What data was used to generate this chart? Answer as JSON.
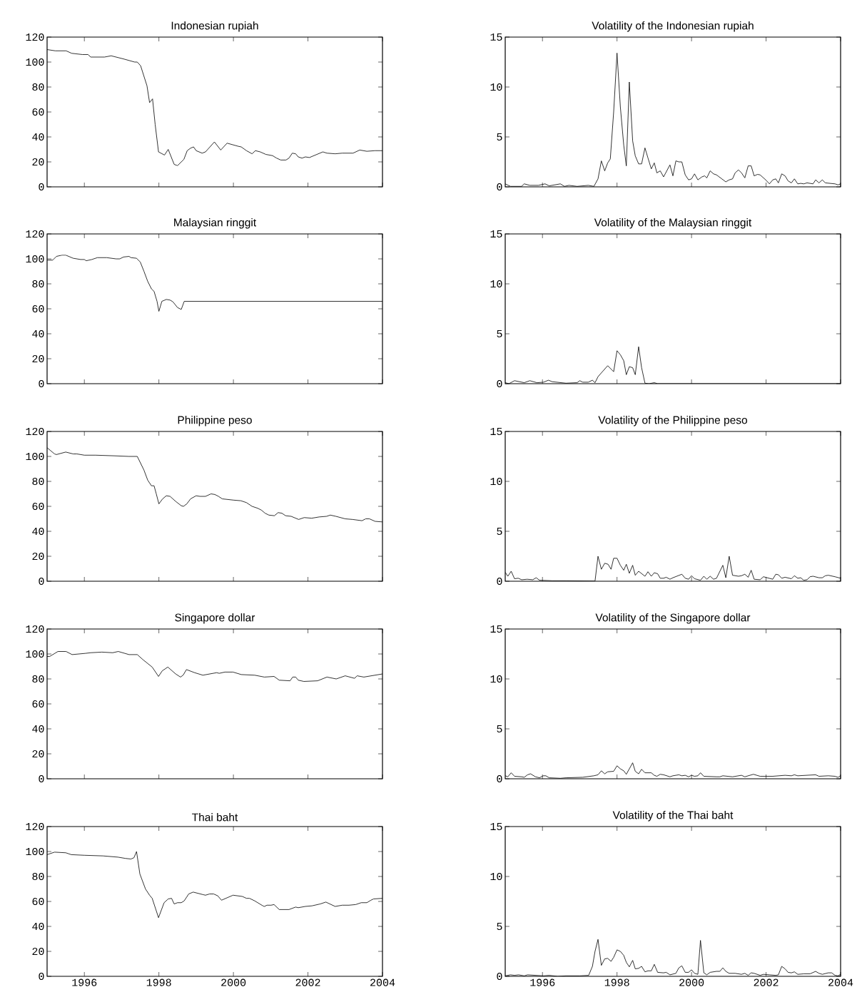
{
  "chart_data": [
    {
      "type": "line",
      "title": "Indonesian rupiah",
      "color": "#000000",
      "xlim": [
        1995,
        2004
      ],
      "ylim": [
        0,
        120
      ],
      "xticks": [
        1996,
        1998,
        2000,
        2002,
        2004
      ],
      "yticks": [
        0,
        20,
        40,
        60,
        80,
        100,
        120
      ],
      "tick_labels": "y",
      "x": [
        1995.0,
        1995.22,
        1995.51,
        1995.66,
        1995.95,
        1996.1,
        1996.17,
        1996.54,
        1996.72,
        1997.05,
        1997.35,
        1997.42,
        1997.51,
        1997.68,
        1997.75,
        1997.83,
        1997.9,
        1997.99,
        1998.15,
        1998.25,
        1998.41,
        1998.5,
        1998.67,
        1998.76,
        1998.85,
        1998.93,
        1999.0,
        1999.16,
        1999.25,
        1999.49,
        1999.66,
        1999.83,
        2000.13,
        2000.21,
        2000.35,
        2000.5,
        2000.59,
        2000.72,
        2000.87,
        2001.05,
        2001.16,
        2001.27,
        2001.41,
        2001.49,
        2001.58,
        2001.67,
        2001.74,
        2001.84,
        2001.93,
        2002.04,
        2002.4,
        2002.51,
        2002.73,
        2002.92,
        2003.21,
        2003.39,
        2003.58,
        2003.8,
        2004.0
      ],
      "values": [
        110,
        109,
        109,
        107,
        106,
        106,
        104,
        104,
        105,
        102.5,
        100,
        100,
        97,
        81,
        67.5,
        70.5,
        50,
        28,
        25.5,
        30,
        18,
        17,
        22,
        29,
        31,
        32,
        29,
        27,
        28,
        36,
        29.5,
        35,
        32.5,
        32,
        29,
        26.5,
        29,
        28,
        26,
        25,
        23,
        21.5,
        21.5,
        23,
        27,
        26.5,
        24,
        23,
        24,
        23.5,
        28,
        27,
        26.5,
        27,
        27,
        29.5,
        28.5,
        29,
        29
      ]
    },
    {
      "type": "line",
      "title": "Volatility of the Indonesian rupiah",
      "color": "#000000",
      "xlim": [
        1995,
        2004
      ],
      "ylim": [
        0,
        15
      ],
      "xticks": [
        1996,
        1998,
        2000,
        2002,
        2004
      ],
      "yticks": [
        0,
        5,
        10,
        15
      ],
      "tick_labels": "y",
      "x": [
        1995.0,
        1995.14,
        1995.44,
        1995.51,
        1995.66,
        1995.89,
        1996.07,
        1996.18,
        1996.48,
        1996.59,
        1996.71,
        1996.93,
        1997.23,
        1997.38,
        1997.49,
        1997.58,
        1997.67,
        1997.75,
        1997.82,
        1997.91,
        1998.0,
        1998.09,
        1998.18,
        1998.25,
        1998.33,
        1998.42,
        1998.49,
        1998.58,
        1998.66,
        1998.75,
        1998.83,
        1998.92,
        1999.0,
        1999.07,
        1999.16,
        1999.25,
        1999.42,
        1999.5,
        1999.58,
        1999.66,
        1999.74,
        1999.83,
        1999.92,
        2000.0,
        2000.08,
        2000.17,
        2000.28,
        2000.35,
        2000.41,
        2000.5,
        2000.59,
        2000.67,
        2000.92,
        2001.01,
        2001.1,
        2001.17,
        2001.26,
        2001.34,
        2001.43,
        2001.52,
        2001.6,
        2001.68,
        2001.77,
        2001.84,
        2001.99,
        2002.09,
        2002.18,
        2002.26,
        2002.33,
        2002.42,
        2002.51,
        2002.59,
        2002.68,
        2002.76,
        2002.85,
        2002.93,
        2003.01,
        2003.1,
        2003.26,
        2003.33,
        2003.42,
        2003.51,
        2003.59,
        2003.85,
        2003.93,
        2004.0
      ],
      "values": [
        0.3,
        0.05,
        0.05,
        0.3,
        0.15,
        0.15,
        0.3,
        0.1,
        0.3,
        0.05,
        0.15,
        0.05,
        0.15,
        0.05,
        0.8,
        2.6,
        1.6,
        2.4,
        2.8,
        7.5,
        13.4,
        8,
        4.2,
        2.1,
        10.5,
        4.6,
        3.1,
        2.3,
        2.3,
        3.9,
        2.9,
        1.8,
        2.4,
        1.4,
        1.6,
        1.0,
        2.2,
        1.1,
        2.6,
        2.5,
        2.5,
        1.2,
        0.7,
        0.8,
        1.3,
        0.7,
        1.0,
        1.1,
        0.9,
        1.6,
        1.3,
        1.2,
        0.5,
        0.7,
        0.8,
        1.4,
        1.7,
        1.4,
        0.9,
        2.1,
        2.1,
        1.1,
        1.25,
        1.2,
        0.7,
        0.3,
        0.7,
        0.8,
        0.4,
        1.3,
        1.1,
        0.6,
        0.4,
        0.8,
        0.3,
        0.35,
        0.3,
        0.4,
        0.3,
        0.7,
        0.4,
        0.7,
        0.4,
        0.3,
        0.2,
        0.3
      ]
    },
    {
      "type": "line",
      "title": "Malaysian ringgit",
      "color": "#000000",
      "xlim": [
        1995,
        2004
      ],
      "ylim": [
        0,
        120
      ],
      "xticks": [
        1996,
        1998,
        2000,
        2002,
        2004
      ],
      "yticks": [
        0,
        20,
        40,
        60,
        80,
        100,
        120
      ],
      "tick_labels": "y",
      "x": [
        1995.0,
        1995.15,
        1995.25,
        1995.4,
        1995.5,
        1995.7,
        1995.9,
        1996.0,
        1996.05,
        1996.2,
        1996.35,
        1996.6,
        1996.85,
        1996.95,
        1997.05,
        1997.2,
        1997.25,
        1997.4,
        1997.5,
        1997.6,
        1997.7,
        1997.8,
        1997.87,
        1997.95,
        1998.0,
        1998.08,
        1998.2,
        1998.3,
        1998.38,
        1998.5,
        1998.6,
        1998.68,
        1999.0,
        2004.0
      ],
      "values": [
        99,
        99,
        102,
        103,
        103,
        100.5,
        99.5,
        99.5,
        98.5,
        99.5,
        101,
        101,
        100,
        100,
        101.5,
        102,
        101,
        100.5,
        97.5,
        90,
        82,
        76,
        74,
        66,
        58,
        66,
        67.5,
        67,
        65.5,
        61,
        59.5,
        66,
        66,
        66
      ]
    },
    {
      "type": "line",
      "title": "Volatility of the Malaysian ringgit",
      "color": "#000000",
      "xlim": [
        1995,
        2004
      ],
      "ylim": [
        0,
        15
      ],
      "xticks": [
        1996,
        1998,
        2000,
        2002,
        2004
      ],
      "yticks": [
        0,
        5,
        10,
        15
      ],
      "tick_labels": "y",
      "x": [
        1995.0,
        1995.1,
        1995.25,
        1995.51,
        1995.66,
        1995.85,
        1996.03,
        1996.16,
        1996.26,
        1996.63,
        1996.93,
        1997.0,
        1997.08,
        1997.23,
        1997.34,
        1997.41,
        1997.49,
        1997.56,
        1997.75,
        1997.91,
        1998.0,
        1998.09,
        1998.18,
        1998.25,
        1998.33,
        1998.42,
        1998.49,
        1998.58,
        1998.66,
        1998.75,
        1998.86,
        1999.0,
        1999.09,
        2004.0
      ],
      "values": [
        0.1,
        0.0,
        0.3,
        0.1,
        0.3,
        0.1,
        0.15,
        0.35,
        0.2,
        0.05,
        0.1,
        0.3,
        0.15,
        0.15,
        0.35,
        0.1,
        0.7,
        1.0,
        1.8,
        1.2,
        3.3,
        2.9,
        2.3,
        0.9,
        1.7,
        1.6,
        0.9,
        3.7,
        1.6,
        0.05,
        0.0,
        0.1,
        0.0,
        0.0
      ]
    },
    {
      "type": "line",
      "title": "Philippine peso",
      "color": "#000000",
      "xlim": [
        1995,
        2004
      ],
      "ylim": [
        0,
        120
      ],
      "xticks": [
        1996,
        1998,
        2000,
        2002,
        2004
      ],
      "yticks": [
        0,
        20,
        40,
        60,
        80,
        100,
        120
      ],
      "tick_labels": "y",
      "x": [
        1995.0,
        1995.08,
        1995.2,
        1995.25,
        1995.5,
        1995.7,
        1995.8,
        1996.0,
        1996.3,
        1996.8,
        1997.2,
        1997.42,
        1997.6,
        1997.7,
        1997.8,
        1997.87,
        1997.93,
        1998.0,
        1998.1,
        1998.2,
        1998.3,
        1998.45,
        1998.6,
        1998.66,
        1998.75,
        1998.85,
        1999.0,
        1999.1,
        1999.25,
        1999.4,
        1999.5,
        1999.6,
        1999.7,
        2000.0,
        2000.2,
        2000.35,
        2000.5,
        2000.65,
        2000.75,
        2000.85,
        2000.95,
        2001.1,
        2001.2,
        2001.3,
        2001.4,
        2001.55,
        2001.75,
        2001.9,
        2002.1,
        2002.3,
        2002.5,
        2002.6,
        2002.75,
        2003.0,
        2003.2,
        2003.45,
        2003.55,
        2003.65,
        2003.8,
        2004.0
      ],
      "values": [
        107,
        105,
        102,
        101.5,
        103.5,
        102,
        102,
        101,
        101,
        100.5,
        100,
        100,
        89,
        81,
        76.5,
        76.5,
        70,
        62,
        66,
        68.5,
        68,
        64,
        60.5,
        60,
        62,
        66,
        68.5,
        68,
        68,
        70,
        69.5,
        68,
        66,
        65,
        64.5,
        63,
        60,
        58.5,
        57,
        54.5,
        53,
        52.5,
        55,
        54.5,
        52.5,
        52,
        49.5,
        51,
        50.5,
        51.5,
        52,
        53,
        52,
        50,
        49.5,
        48.5,
        50,
        50,
        48,
        47.5
      ]
    },
    {
      "type": "line",
      "title": "Volatility of the Philippine peso",
      "color": "#000000",
      "xlim": [
        1995,
        2004
      ],
      "ylim": [
        0,
        15
      ],
      "xticks": [
        1996,
        1998,
        2000,
        2002,
        2004
      ],
      "yticks": [
        0,
        5,
        10,
        15
      ],
      "tick_labels": "y",
      "x": [
        1995.0,
        1995.07,
        1995.16,
        1995.25,
        1995.35,
        1995.44,
        1995.59,
        1995.74,
        1995.83,
        1995.92,
        1996.26,
        1996.63,
        1997.41,
        1997.49,
        1997.58,
        1997.67,
        1997.76,
        1997.84,
        1997.91,
        1998.0,
        1998.09,
        1998.18,
        1998.25,
        1998.33,
        1998.42,
        1998.49,
        1998.58,
        1998.75,
        1998.83,
        1998.92,
        1999.0,
        1999.09,
        1999.16,
        1999.25,
        1999.32,
        1999.42,
        1999.5,
        1999.74,
        1999.83,
        1999.92,
        2000.0,
        2000.08,
        2000.24,
        2000.33,
        2000.41,
        2000.5,
        2000.59,
        2000.67,
        2000.84,
        2000.92,
        2001.01,
        2001.1,
        2001.26,
        2001.34,
        2001.43,
        2001.52,
        2001.6,
        2001.68,
        2001.84,
        2001.93,
        2002.18,
        2002.26,
        2002.33,
        2002.42,
        2002.51,
        2002.68,
        2002.76,
        2002.85,
        2002.93,
        2003.01,
        2003.1,
        2003.18,
        2003.26,
        2003.42,
        2003.51,
        2003.59,
        2003.67,
        2003.85,
        2004.0
      ],
      "values": [
        0.9,
        0.5,
        1.0,
        0.25,
        0.3,
        0.15,
        0.2,
        0.15,
        0.35,
        0.1,
        0.05,
        0.05,
        0.02,
        2.5,
        1.2,
        1.8,
        1.7,
        1.2,
        2.3,
        2.3,
        1.6,
        1.1,
        1.7,
        0.8,
        1.6,
        0.6,
        1.0,
        0.5,
        0.95,
        0.5,
        0.85,
        0.75,
        0.3,
        0.3,
        0.4,
        0.2,
        0.35,
        0.7,
        0.3,
        0.2,
        0.55,
        0.25,
        0.1,
        0.5,
        0.2,
        0.5,
        0.2,
        0.3,
        1.6,
        0.35,
        2.5,
        0.6,
        0.5,
        0.55,
        0.7,
        0.4,
        1.1,
        0.2,
        0.15,
        0.45,
        0.2,
        0.7,
        0.65,
        0.3,
        0.4,
        0.25,
        0.55,
        0.3,
        0.35,
        0.1,
        0.15,
        0.45,
        0.5,
        0.35,
        0.35,
        0.55,
        0.6,
        0.45,
        0.3
      ]
    },
    {
      "type": "line",
      "title": "Singapore dollar",
      "color": "#000000",
      "xlim": [
        1995,
        2004
      ],
      "ylim": [
        0,
        120
      ],
      "xticks": [
        1996,
        1998,
        2000,
        2002,
        2004
      ],
      "yticks": [
        0,
        20,
        40,
        60,
        80,
        100,
        120
      ],
      "tick_labels": "y",
      "x": [
        1995.0,
        1995.07,
        1995.29,
        1995.51,
        1995.67,
        1996.03,
        1996.17,
        1996.47,
        1996.76,
        1996.91,
        1997.2,
        1997.42,
        1997.57,
        1997.82,
        1997.99,
        1998.09,
        1998.24,
        1998.45,
        1998.58,
        1998.65,
        1998.74,
        1998.96,
        1999.18,
        1999.55,
        1999.62,
        1999.77,
        1999.99,
        2000.21,
        2000.57,
        2000.83,
        2001.09,
        2001.23,
        2001.52,
        2001.59,
        2001.67,
        2001.74,
        2001.89,
        2002.26,
        2002.51,
        2002.76,
        2003.0,
        2003.25,
        2003.32,
        2003.5,
        2004.0
      ],
      "values": [
        98,
        98,
        102,
        102,
        99.5,
        100.5,
        101,
        101.5,
        101,
        102,
        99.5,
        99.5,
        95.5,
        89.5,
        82,
        86.5,
        89.5,
        84,
        81.5,
        83,
        87.5,
        85,
        83,
        85,
        84.5,
        85.5,
        85.5,
        83.5,
        83,
        81.5,
        82,
        79,
        78.5,
        81.5,
        81.5,
        79,
        78,
        78.5,
        81.5,
        80,
        82.5,
        80.5,
        82.5,
        81.5,
        84
      ]
    },
    {
      "type": "line",
      "title": "Volatility of the Singapore dollar",
      "color": "#000000",
      "xlim": [
        1995,
        2004
      ],
      "ylim": [
        0,
        15
      ],
      "xticks": [
        1996,
        1998,
        2000,
        2002,
        2004
      ],
      "yticks": [
        0,
        5,
        10,
        15
      ],
      "tick_labels": "y",
      "x": [
        1995.0,
        1995.07,
        1995.16,
        1995.25,
        1995.44,
        1995.51,
        1995.6,
        1995.68,
        1995.81,
        1995.92,
        1996.02,
        1996.09,
        1996.18,
        1996.48,
        1996.63,
        1997.08,
        1997.38,
        1997.49,
        1997.58,
        1997.67,
        1997.75,
        1997.91,
        1998.0,
        1998.09,
        1998.18,
        1998.25,
        1998.42,
        1998.49,
        1998.58,
        1998.66,
        1998.75,
        1998.92,
        1999.0,
        1999.07,
        1999.16,
        1999.25,
        1999.42,
        1999.5,
        1999.66,
        1999.74,
        1999.83,
        1999.92,
        2000.0,
        2000.08,
        2000.17,
        2000.24,
        2000.33,
        2000.67,
        2000.76,
        2000.84,
        2001.1,
        2001.34,
        2001.43,
        2001.66,
        2001.84,
        2002.18,
        2002.51,
        2002.68,
        2002.76,
        2002.85,
        2003.33,
        2003.42,
        2003.67,
        2003.85,
        2003.93,
        2004.0
      ],
      "values": [
        0.3,
        0.2,
        0.6,
        0.25,
        0.2,
        0.15,
        0.4,
        0.5,
        0.2,
        0.1,
        0.3,
        0.3,
        0.1,
        0.05,
        0.1,
        0.15,
        0.3,
        0.4,
        0.8,
        0.5,
        0.7,
        0.75,
        1.3,
        1.0,
        0.8,
        0.45,
        1.6,
        0.75,
        0.5,
        0.95,
        0.6,
        0.6,
        0.35,
        0.25,
        0.45,
        0.4,
        0.2,
        0.3,
        0.4,
        0.3,
        0.35,
        0.2,
        0.35,
        0.25,
        0.3,
        0.6,
        0.25,
        0.2,
        0.2,
        0.3,
        0.2,
        0.35,
        0.2,
        0.45,
        0.25,
        0.25,
        0.35,
        0.3,
        0.4,
        0.3,
        0.4,
        0.25,
        0.3,
        0.25,
        0.15,
        0.3
      ]
    },
    {
      "type": "line",
      "title": "Thai baht",
      "color": "#000000",
      "xlim": [
        1995,
        2004
      ],
      "ylim": [
        0,
        120
      ],
      "xticks": [
        1996,
        1998,
        2000,
        2002,
        2004
      ],
      "yticks": [
        0,
        20,
        40,
        60,
        80,
        100,
        120
      ],
      "x": [
        1995.0,
        1995.2,
        1995.5,
        1995.65,
        1996.0,
        1996.5,
        1996.9,
        1997.1,
        1997.25,
        1997.33,
        1997.4,
        1997.49,
        1997.64,
        1997.75,
        1997.82,
        1997.99,
        1998.14,
        1998.25,
        1998.34,
        1998.41,
        1998.5,
        1998.6,
        1998.68,
        1998.8,
        1998.92,
        1999.18,
        1999.25,
        1999.36,
        1999.47,
        1999.58,
        1999.68,
        1999.99,
        2000.24,
        2000.35,
        2000.43,
        2000.57,
        2000.79,
        2000.83,
        2000.9,
        2001.01,
        2001.09,
        2001.23,
        2001.49,
        2001.67,
        2001.74,
        2001.93,
        2002.11,
        2002.33,
        2002.48,
        2002.73,
        2002.92,
        2003.1,
        2003.28,
        2003.43,
        2003.58,
        2003.69,
        2003.76,
        2004.0
      ],
      "values": [
        97.5,
        99.5,
        99,
        97.5,
        97,
        96.5,
        95.5,
        94.5,
        94,
        95,
        100,
        82,
        70,
        65,
        62.5,
        47,
        59,
        62,
        62.5,
        58,
        59,
        59,
        60.5,
        66,
        67.5,
        65.5,
        65,
        66,
        66,
        64.5,
        61,
        65,
        64,
        62.5,
        62.5,
        60.5,
        56.5,
        56,
        57,
        57,
        57.5,
        53.5,
        53.5,
        55.5,
        55,
        56,
        56.5,
        58,
        59.5,
        56,
        57,
        57,
        57.5,
        59,
        59,
        61,
        62,
        62.5
      ]
    },
    {
      "type": "line",
      "title": "Volatility of the Thai baht",
      "color": "#000000",
      "xlim": [
        1995,
        2004
      ],
      "ylim": [
        0,
        15
      ],
      "xticks": [
        1996,
        1998,
        2000,
        2002,
        2004
      ],
      "yticks": [
        0,
        5,
        10,
        15
      ],
      "x": [
        1995.0,
        1995.14,
        1995.25,
        1995.36,
        1995.51,
        1995.6,
        1996.03,
        1996.18,
        1996.41,
        1996.63,
        1997.0,
        1997.24,
        1997.34,
        1997.41,
        1997.49,
        1997.58,
        1997.67,
        1997.75,
        1997.84,
        1997.91,
        1998.0,
        1998.09,
        1998.18,
        1998.25,
        1998.33,
        1998.42,
        1998.49,
        1998.58,
        1998.66,
        1998.75,
        1998.83,
        1998.92,
        1999.0,
        1999.09,
        1999.25,
        1999.32,
        1999.42,
        1999.58,
        1999.66,
        1999.74,
        1999.83,
        1999.92,
        2000.0,
        2000.08,
        2000.17,
        2000.24,
        2000.33,
        2000.41,
        2000.5,
        2000.67,
        2000.76,
        2000.84,
        2000.92,
        2001.01,
        2001.17,
        2001.34,
        2001.43,
        2001.52,
        2001.6,
        2001.68,
        2001.84,
        2001.93,
        2002.09,
        2002.26,
        2002.33,
        2002.42,
        2002.51,
        2002.59,
        2002.68,
        2002.76,
        2002.85,
        2003.01,
        2003.18,
        2003.33,
        2003.42,
        2003.51,
        2003.67,
        2003.76,
        2003.85,
        2003.93,
        2004.0
      ],
      "values": [
        0.05,
        0.15,
        0.1,
        0.15,
        0.05,
        0.15,
        0.05,
        0.1,
        0.0,
        0.05,
        0.05,
        0.1,
        1.0,
        2.5,
        3.7,
        1.1,
        1.75,
        1.8,
        1.5,
        1.9,
        2.65,
        2.5,
        2.1,
        1.4,
        0.95,
        1.6,
        0.75,
        0.8,
        1.0,
        0.45,
        0.55,
        0.55,
        1.2,
        0.4,
        0.35,
        0.4,
        0.15,
        0.3,
        0.85,
        1.05,
        0.4,
        0.4,
        0.65,
        0.3,
        0.2,
        3.6,
        0.35,
        0.15,
        0.4,
        0.5,
        0.5,
        0.85,
        0.5,
        0.3,
        0.3,
        0.2,
        0.3,
        0.1,
        0.35,
        0.3,
        0.1,
        0.2,
        0.15,
        0.1,
        0.15,
        1.0,
        0.75,
        0.4,
        0.35,
        0.45,
        0.2,
        0.25,
        0.25,
        0.5,
        0.3,
        0.2,
        0.35,
        0.35,
        0.1,
        0.05,
        0.2
      ]
    }
  ]
}
